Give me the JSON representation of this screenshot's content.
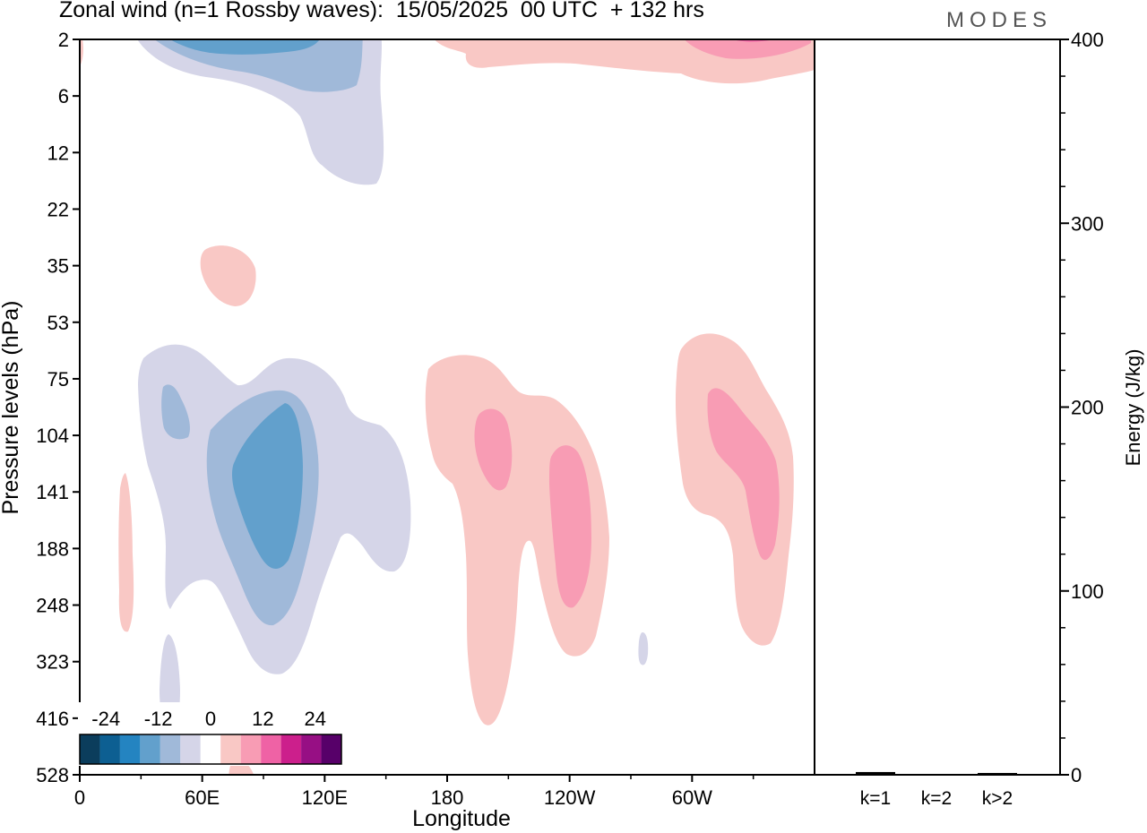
{
  "header": {
    "title": "Zonal wind (n=1 Rossby waves):  15/05/2025  00 UTC  + 132 hrs",
    "brand": "MODES"
  },
  "colors": {
    "scale": [
      "#0b3d5c",
      "#0d5f92",
      "#2484c1",
      "#62a0cc",
      "#a0b9d9",
      "#d5d5e8",
      "#ffffff",
      "#f9c8c5",
      "#f89cb4",
      "#ef62a5",
      "#cc1f8c",
      "#970f84",
      "#570069"
    ],
    "blue_light": "#d5d5e8",
    "blue_mid": "#a0b9d9",
    "blue_strong": "#62a0cc",
    "red_light": "#f9c8c5",
    "red_mid": "#f89cb4",
    "red_strong": "#ef62a5"
  },
  "chart_data": [
    {
      "type": "heatmap",
      "title": "Zonal wind (n=1 Rossby waves):  15/05/2025  00 UTC  + 132 hrs",
      "xlabel": "Longitude",
      "ylabel": "Pressure levels (hPa)",
      "x_ticks": [
        "0",
        "60E",
        "120E",
        "180",
        "120W",
        "60W"
      ],
      "y_ticks": [
        "2",
        "6",
        "12",
        "22",
        "35",
        "53",
        "75",
        "104",
        "141",
        "188",
        "248",
        "323",
        "416",
        "528"
      ],
      "colorbar": {
        "labels": [
          "-24",
          "-12",
          "0",
          "12",
          "24"
        ],
        "levels": [
          -30,
          -25,
          -20,
          -15,
          -10,
          -5,
          0,
          5,
          10,
          15,
          20,
          25,
          30
        ]
      },
      "features": [
        {
          "sign": "negative",
          "level": "light",
          "lon_range": [
            30,
            140
          ],
          "p_range": [
            2,
            17
          ]
        },
        {
          "sign": "negative",
          "level": "mid",
          "lon_range": [
            30,
            130
          ],
          "p_range": [
            2,
            6
          ]
        },
        {
          "sign": "negative",
          "level": "strong",
          "lon_range": [
            40,
            110
          ],
          "p_range": [
            2,
            3
          ]
        },
        {
          "sign": "negative",
          "level": "light",
          "lon_range": [
            28,
            155
          ],
          "p_range": [
            60,
            350
          ]
        },
        {
          "sign": "negative",
          "level": "mid",
          "lon_range": [
            58,
            112
          ],
          "p_range": [
            90,
            270
          ]
        },
        {
          "sign": "negative",
          "level": "strong",
          "lon_range": [
            70,
            103
          ],
          "p_range": [
            110,
            200
          ]
        },
        {
          "sign": "negative",
          "level": "mid",
          "lon_range": [
            38,
            52
          ],
          "p_range": [
            85,
            115
          ]
        },
        {
          "sign": "positive",
          "level": "light",
          "lon_range": [
            190,
            323
          ],
          "p_range": [
            2,
            5
          ]
        },
        {
          "sign": "positive",
          "level": "mid",
          "lon_range": [
            275,
            323
          ],
          "p_range": [
            2,
            3
          ]
        },
        {
          "sign": "positive",
          "level": "light",
          "lon_range": [
            55,
            78
          ],
          "p_range": [
            30,
            45
          ]
        },
        {
          "sign": "positive",
          "level": "light",
          "lon_range": [
            18,
            26
          ],
          "p_range": [
            140,
            280
          ]
        },
        {
          "sign": "positive",
          "level": "light",
          "lon_range": [
            153,
            248
          ],
          "p_range": [
            62,
            440
          ]
        },
        {
          "sign": "positive",
          "level": "mid",
          "lon_range": [
            187,
            205
          ],
          "p_range": [
            95,
            150
          ]
        },
        {
          "sign": "positive",
          "level": "mid",
          "lon_range": [
            217,
            235
          ],
          "p_range": [
            115,
            250
          ]
        },
        {
          "sign": "positive",
          "level": "light",
          "lon_range": [
            270,
            320
          ],
          "p_range": [
            55,
            320
          ]
        },
        {
          "sign": "positive",
          "level": "mid",
          "lon_range": [
            285,
            312
          ],
          "p_range": [
            80,
            200
          ]
        },
        {
          "sign": "negative",
          "level": "light",
          "lon_range": [
            254,
            258
          ],
          "p_range": [
            290,
            340
          ]
        }
      ]
    },
    {
      "type": "bar",
      "ylabel": "Energy (J/kg)",
      "categories": [
        "k=1",
        "k=2",
        "k>2"
      ],
      "values": [
        1,
        0,
        0.5
      ],
      "ylim": [
        0,
        400
      ],
      "y_ticks": [
        "0",
        "100",
        "200",
        "300",
        "400"
      ]
    }
  ]
}
